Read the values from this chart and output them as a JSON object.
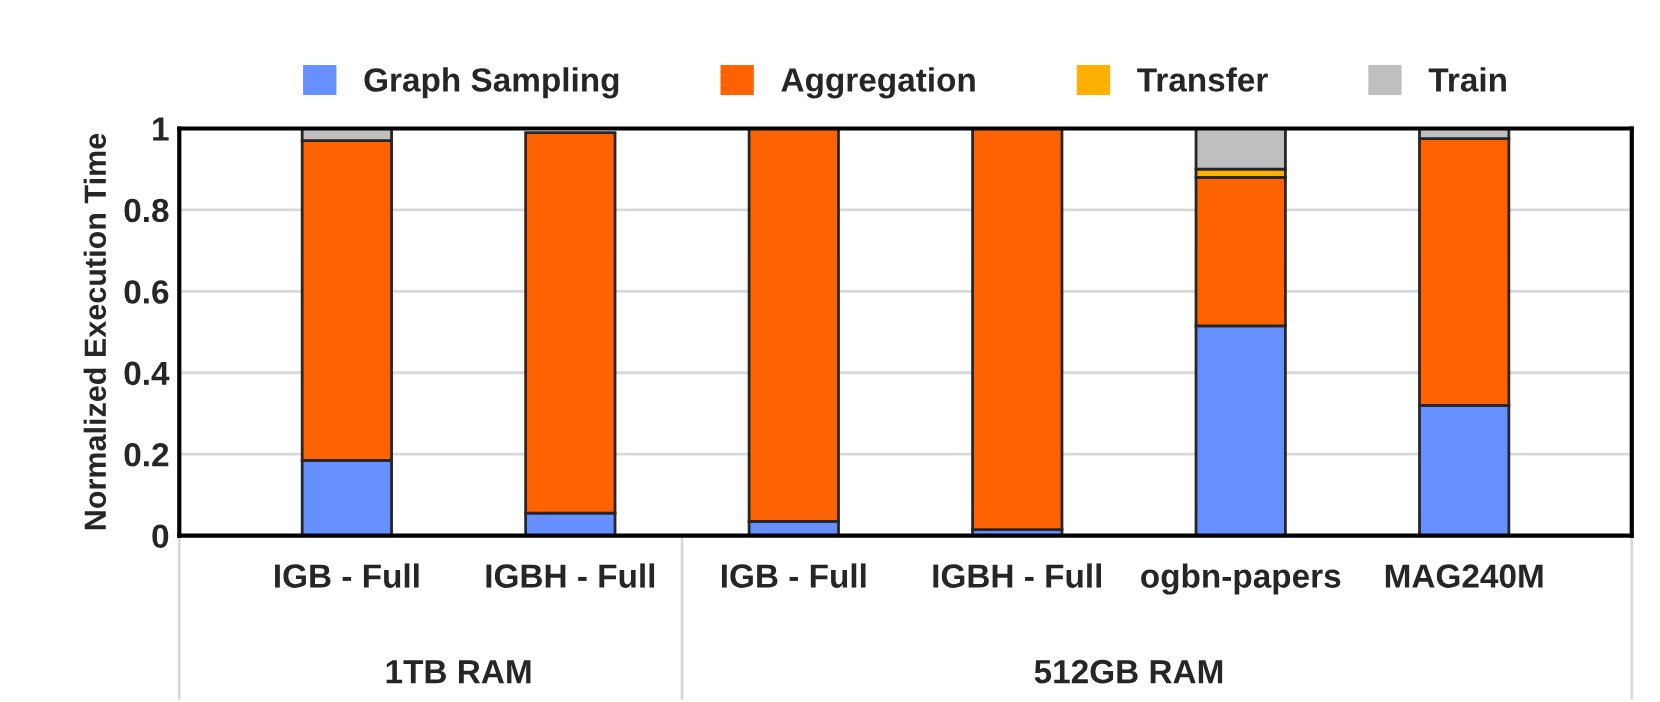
{
  "chart_data": {
    "type": "bar",
    "stacked": true,
    "ylabel": "Normalized Execution Time",
    "categories": [
      "IGB - Full",
      "IGBH - Full",
      "IGB - Full",
      "IGBH - Full",
      "ogbn-papers",
      "MAG240M"
    ],
    "series": [
      {
        "name": "Graph Sampling",
        "color": "#6690ff",
        "values": [
          0.185,
          0.055,
          0.035,
          0.015,
          0.515,
          0.32
        ]
      },
      {
        "name": "Aggregation",
        "color": "#ff6200",
        "values": [
          0.785,
          0.935,
          0.965,
          0.985,
          0.365,
          0.655
        ]
      },
      {
        "name": "Transfer",
        "color": "#ffb000",
        "values": [
          null,
          null,
          null,
          null,
          0.02,
          null
        ]
      },
      {
        "name": "Train",
        "color": "#bfbfbf",
        "values": [
          0.03,
          null,
          null,
          null,
          0.1,
          0.025
        ]
      }
    ],
    "ylim": [
      0,
      1
    ],
    "yticks": [
      0,
      {
        "value": 0.2,
        "label": "0.2"
      },
      {
        "value": 0.4,
        "label": "0.4"
      },
      {
        "value": 0.6,
        "label": "0.6"
      },
      {
        "value": 0.8,
        "label": "0.8"
      },
      1
    ],
    "grid": "y",
    "legend": "top",
    "annotations": [
      "1TB RAM",
      "512GB RAM"
    ]
  }
}
